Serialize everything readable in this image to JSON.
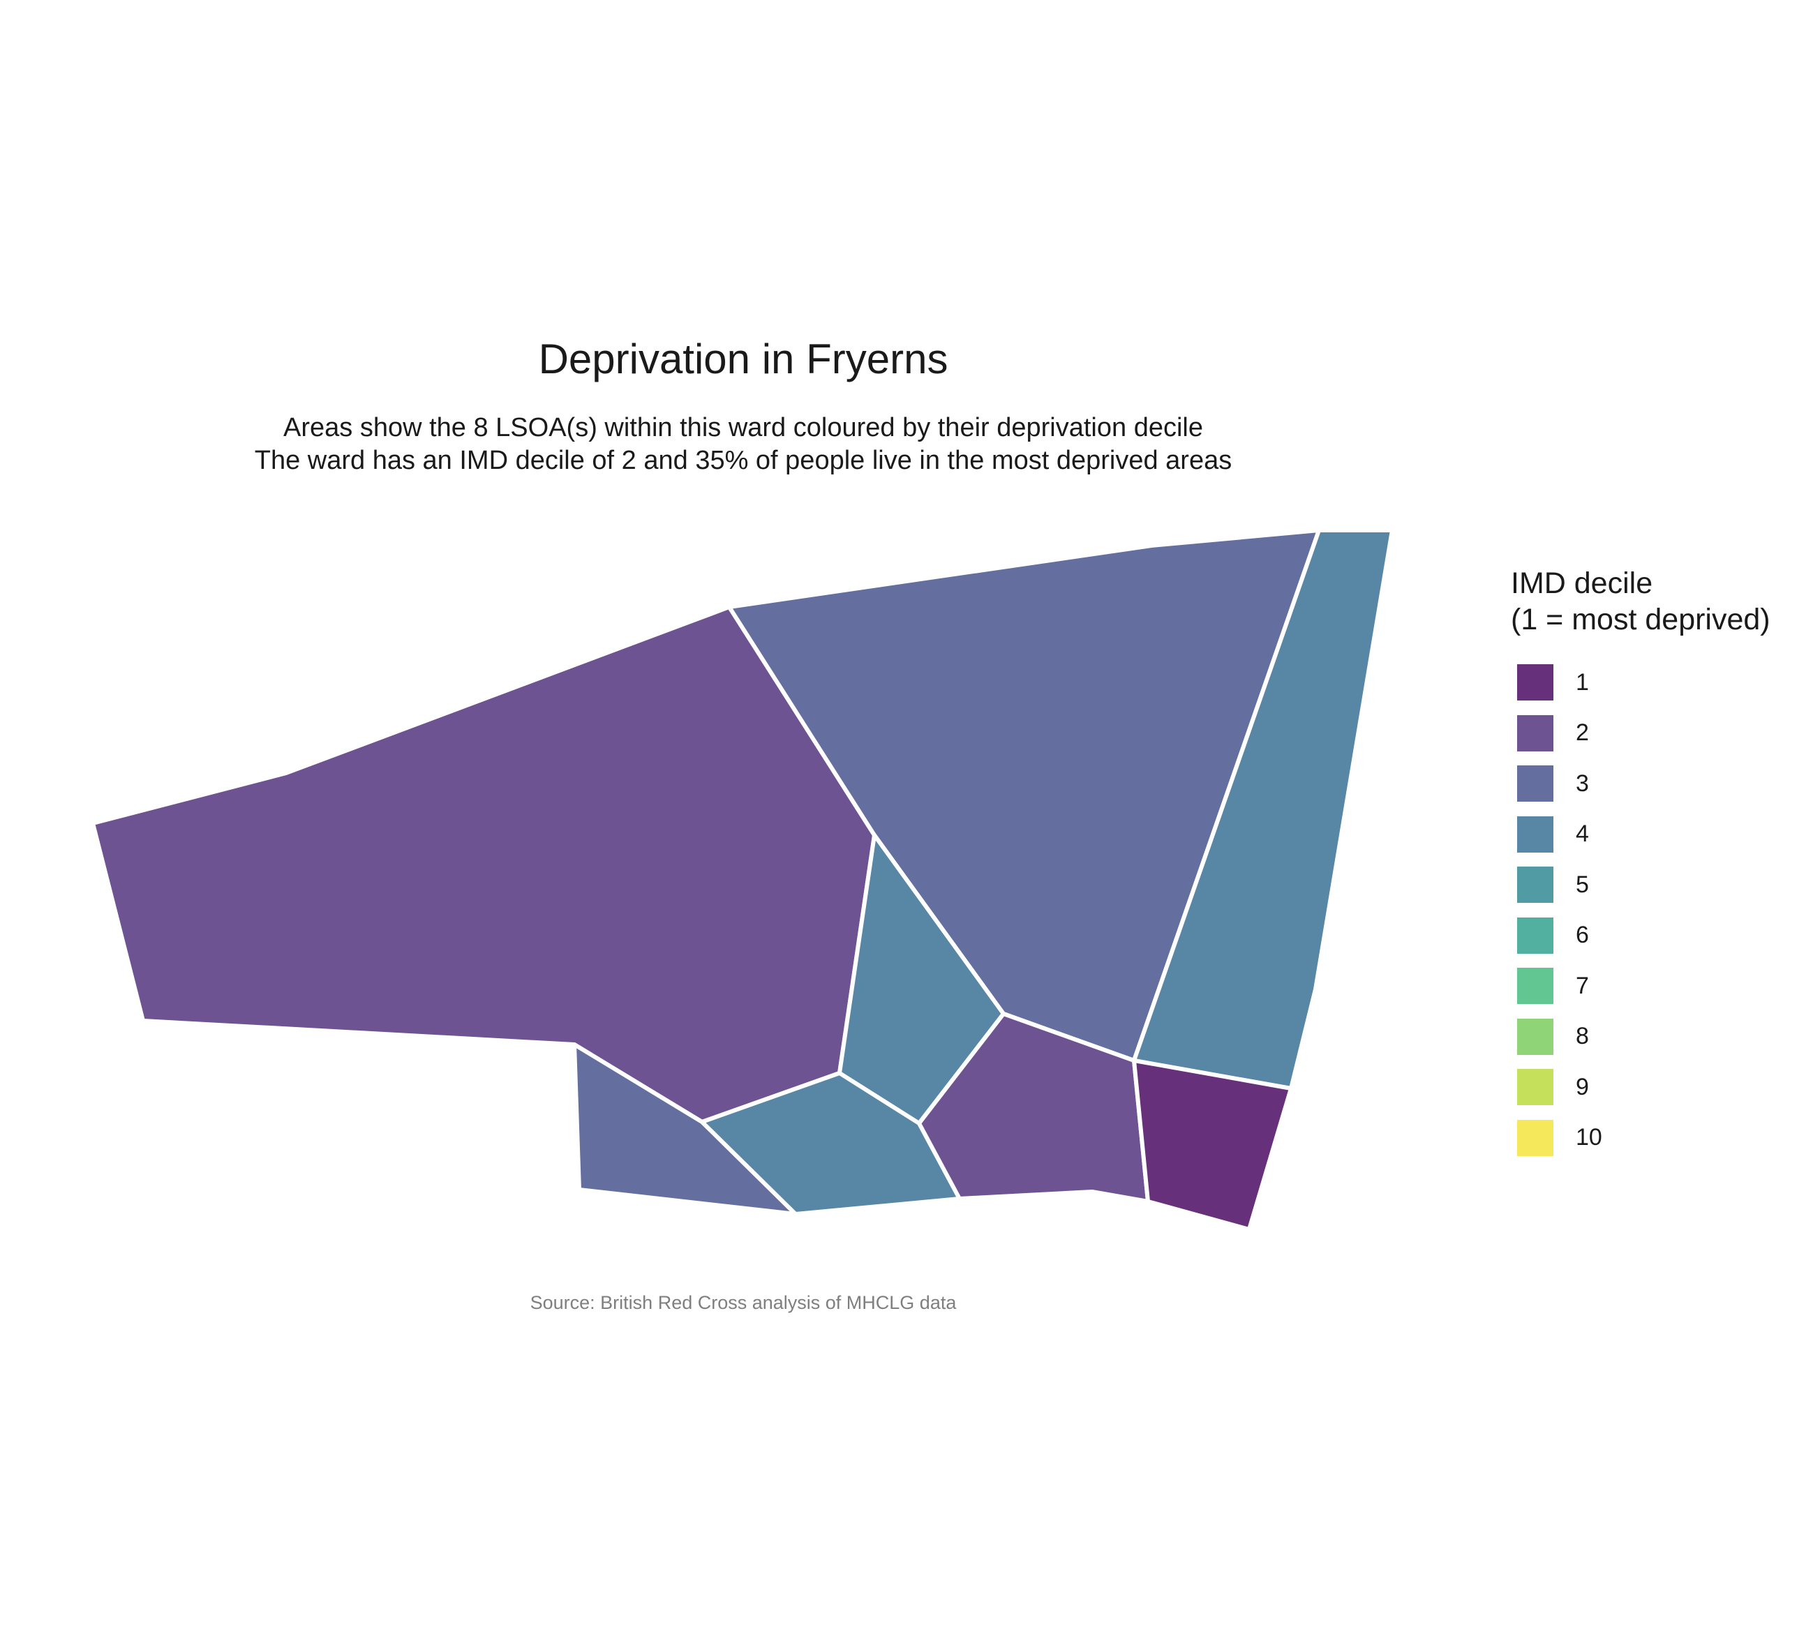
{
  "title": "Deprivation in Fryerns",
  "subtitle_line1": "Areas show the 8 LSOA(s) within this ward coloured by their deprivation decile",
  "subtitle_line2": "The ward has an IMD decile of 2 and 35% of people live in the most deprived areas",
  "caption": "Source: British Red Cross analysis of MHCLG data",
  "legend": {
    "title_line1": "IMD decile",
    "title_line2": "(1 = most deprived)",
    "items": [
      {
        "label": "1",
        "color": "#67307A"
      },
      {
        "label": "2",
        "color": "#6E5392"
      },
      {
        "label": "3",
        "color": "#646F9F"
      },
      {
        "label": "4",
        "color": "#5886A5"
      },
      {
        "label": "5",
        "color": "#519BA4"
      },
      {
        "label": "6",
        "color": "#52B0A0"
      },
      {
        "label": "7",
        "color": "#62C692"
      },
      {
        "label": "8",
        "color": "#8FD477"
      },
      {
        "label": "9",
        "color": "#C5E05A"
      },
      {
        "label": "10",
        "color": "#F5E85A"
      }
    ]
  },
  "chart_data": {
    "type": "choropleth",
    "value_field": "IMD decile",
    "border_color": "#ffffff",
    "areas": [
      {
        "decile": 2
      },
      {
        "decile": 3
      },
      {
        "decile": 4
      },
      {
        "decile": 4
      },
      {
        "decile": 3
      },
      {
        "decile": 4
      },
      {
        "decile": 2
      },
      {
        "decile": 1
      }
    ]
  }
}
